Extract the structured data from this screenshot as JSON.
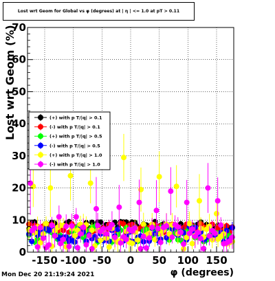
{
  "footer_timestamp": "Mon Dec 20 21:19:24 2021",
  "chart_data": {
    "type": "scatter",
    "title": "Lost wrt Geom for Global vs φ (degrees) at | η | <= 1.0 at pT > 0.11",
    "xlabel": "φ (degrees)",
    "ylabel": "Lost wrt Geom (%)",
    "xlim": [
      -180,
      180
    ],
    "ylim": [
      0,
      70
    ],
    "x_ticks": [
      "-150",
      "-100",
      "-50",
      "0",
      "50",
      "100",
      "150"
    ],
    "y_ticks": [
      "0",
      "10",
      "20",
      "30",
      "40",
      "50",
      "60",
      "70"
    ],
    "grid": true,
    "legend_position": "left",
    "legend": [
      "(+) with p T/|q| > 0.1",
      "(-) with p T/|q| > 0.1",
      "(+) with p T/|q| > 0.5",
      "(-) with p T/|q| > 0.5",
      "(+) with p T/|q| > 1.0",
      "(-) with p T/|q| > 1.0"
    ],
    "series": [
      {
        "name": "(+) with p T/|q| > 0.1",
        "color": "#000000",
        "band": [
          7,
          9.5
        ],
        "err": 0.8
      },
      {
        "name": "(-) with p T/|q| > 0.1",
        "color": "#ff0000",
        "band": [
          6,
          9
        ],
        "err": 1.0
      },
      {
        "name": "(+) with p T/|q| > 0.5",
        "color": "#00ff00",
        "band": [
          3,
          8
        ],
        "err": 1.5
      },
      {
        "name": "(-) with p T/|q| > 0.5",
        "color": "#0000ff",
        "band": [
          3,
          8
        ],
        "err": 1.5
      },
      {
        "name": "(+) with p T/|q| > 1.0",
        "color": "#ffff00",
        "band": [
          1,
          9
        ],
        "err": 3.0,
        "outliers": [
          [
            -170,
            20.5
          ],
          [
            -140,
            20
          ],
          [
            -105,
            23.8
          ],
          [
            -70,
            21.5
          ],
          [
            -12,
            29.5
          ],
          [
            18,
            19.5
          ],
          [
            50,
            23.5
          ],
          [
            80,
            20.5
          ],
          [
            120,
            16
          ],
          [
            150,
            12
          ]
        ]
      },
      {
        "name": "(-) with p T/|q| > 1.0",
        "color": "#ff00ff",
        "band": [
          1,
          9
        ],
        "err": 3.0,
        "outliers": [
          [
            -175,
            21.5
          ],
          [
            -125,
            11
          ],
          [
            -95,
            11
          ],
          [
            -60,
            13.5
          ],
          [
            -20,
            14
          ],
          [
            15,
            15.5
          ],
          [
            45,
            13
          ],
          [
            70,
            19
          ],
          [
            98,
            15.5
          ],
          [
            135,
            20
          ],
          [
            152,
            16
          ]
        ]
      }
    ],
    "n_bins": 72
  }
}
